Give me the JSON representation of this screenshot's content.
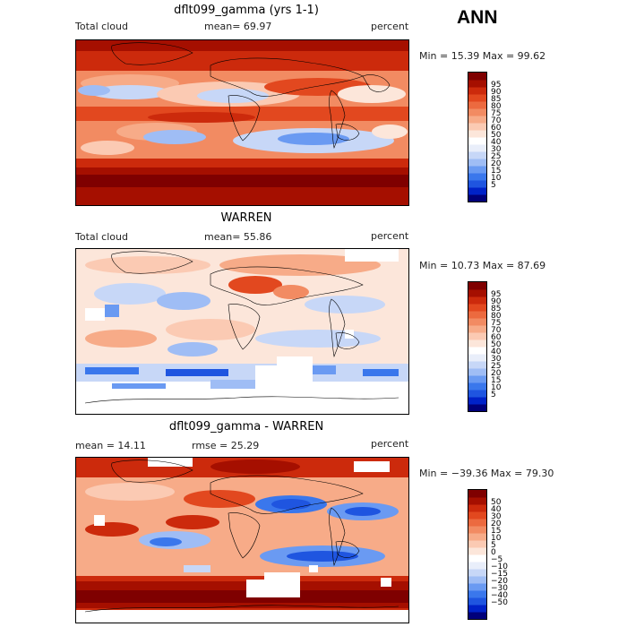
{
  "season_label": "ANN",
  "panels": [
    {
      "title": "dflt099_gamma (yrs 1-1)",
      "left_label": "Total cloud",
      "mid_label": "mean=  69.97",
      "right_label": "percent",
      "minmax": "Min =  15.39 Max =  99.62",
      "colorbar": {
        "colors": [
          "#00007a",
          "#0022c8",
          "#1f55e0",
          "#3a77ec",
          "#6a9af2",
          "#9fbdf5",
          "#c7d7f7",
          "#e9eefa",
          "#ffffff",
          "#fce6da",
          "#fbcab3",
          "#f7ab88",
          "#f28b62",
          "#ec6a3f",
          "#e2481f",
          "#cc2a0c",
          "#a50f00",
          "#7f0000"
        ],
        "labels": [
          "5",
          "10",
          "15",
          "20",
          "25",
          "30",
          "40",
          "50",
          "60",
          "70",
          "75",
          "80",
          "85",
          "90",
          "95"
        ]
      }
    },
    {
      "title": "WARREN",
      "left_label": "Total cloud",
      "mid_label": "mean=  55.86",
      "right_label": "percent",
      "minmax": "Min =  10.73 Max =  87.69",
      "colorbar": {
        "colors": [
          "#00007a",
          "#0022c8",
          "#1f55e0",
          "#3a77ec",
          "#6a9af2",
          "#9fbdf5",
          "#c7d7f7",
          "#e9eefa",
          "#ffffff",
          "#fce6da",
          "#fbcab3",
          "#f7ab88",
          "#f28b62",
          "#ec6a3f",
          "#e2481f",
          "#cc2a0c",
          "#a50f00",
          "#7f0000"
        ],
        "labels": [
          "5",
          "10",
          "15",
          "20",
          "25",
          "30",
          "40",
          "50",
          "60",
          "70",
          "75",
          "80",
          "85",
          "90",
          "95"
        ]
      }
    },
    {
      "title": "dflt099_gamma - WARREN",
      "left_label": "mean =  14.11",
      "mid_label": "rmse =  25.29",
      "right_label": "percent",
      "minmax": "Min = −39.36 Max =  79.30",
      "colorbar": {
        "colors": [
          "#00007a",
          "#0022c8",
          "#1f55e0",
          "#3a77ec",
          "#6a9af2",
          "#9fbdf5",
          "#c7d7f7",
          "#e9eefa",
          "#ffffff",
          "#fce6da",
          "#fbcab3",
          "#f7ab88",
          "#f28b62",
          "#ec6a3f",
          "#e2481f",
          "#cc2a0c",
          "#a50f00",
          "#7f0000"
        ],
        "labels": [
          "−50",
          "−40",
          "−30",
          "−20",
          "−15",
          "−10",
          "−5",
          "0",
          "5",
          "10",
          "15",
          "20",
          "30",
          "40",
          "50"
        ]
      }
    }
  ]
}
